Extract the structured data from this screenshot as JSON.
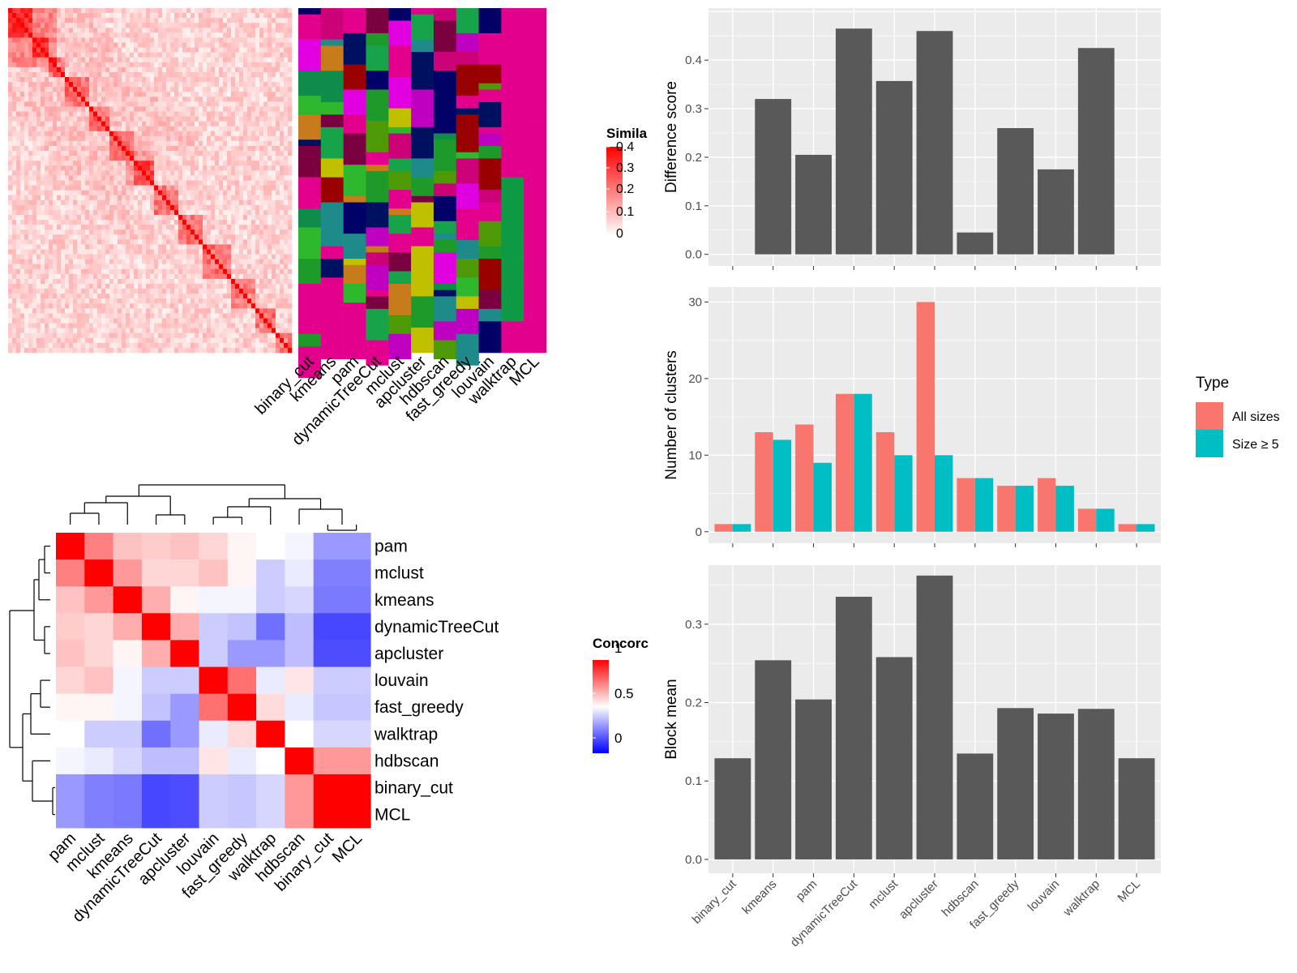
{
  "heatmap_top": {
    "legend_title": "Simila",
    "legend_ticks": [
      "0.4",
      "0.3",
      "0.2",
      "0.1",
      "0"
    ],
    "method_labels": [
      "binary_cut",
      "kmeans",
      "pam",
      "dynamicTreeCut",
      "mclust",
      "apcluster",
      "hdbscan",
      "fast_greedy",
      "louvain",
      "walktrap",
      "MCL"
    ]
  },
  "heatmap_bottom": {
    "legend_title": "Concorc",
    "legend_ticks": [
      "1",
      "0.5",
      "0"
    ],
    "row_labels": [
      "pam",
      "mclust",
      "kmeans",
      "dynamicTreeCut",
      "apcluster",
      "louvain",
      "fast_greedy",
      "walktrap",
      "hdbscan",
      "binary_cut",
      "MCL"
    ],
    "col_labels": [
      "pam",
      "mclust",
      "kmeans",
      "dynamicTreeCut",
      "apcluster",
      "louvain",
      "fast_greedy",
      "walktrap",
      "hdbscan",
      "binary_cut",
      "MCL"
    ],
    "matrix": [
      [
        1.0,
        0.75,
        0.62,
        0.6,
        0.62,
        0.58,
        0.52,
        0.5,
        0.48,
        0.3,
        0.3
      ],
      [
        0.75,
        1.0,
        0.7,
        0.58,
        0.58,
        0.62,
        0.52,
        0.4,
        0.46,
        0.25,
        0.25
      ],
      [
        0.62,
        0.7,
        1.0,
        0.66,
        0.52,
        0.48,
        0.48,
        0.4,
        0.42,
        0.24,
        0.24
      ],
      [
        0.6,
        0.58,
        0.66,
        1.0,
        0.66,
        0.4,
        0.38,
        0.22,
        0.37,
        0.14,
        0.14
      ],
      [
        0.62,
        0.58,
        0.52,
        0.66,
        1.0,
        0.4,
        0.3,
        0.3,
        0.37,
        0.15,
        0.15
      ],
      [
        0.58,
        0.62,
        0.48,
        0.4,
        0.4,
        1.0,
        0.78,
        0.46,
        0.55,
        0.4,
        0.4
      ],
      [
        0.52,
        0.52,
        0.48,
        0.38,
        0.3,
        0.78,
        1.0,
        0.57,
        0.46,
        0.39,
        0.39
      ],
      [
        0.5,
        0.4,
        0.4,
        0.22,
        0.3,
        0.46,
        0.57,
        1.0,
        0.5,
        0.42,
        0.42
      ],
      [
        0.48,
        0.46,
        0.42,
        0.37,
        0.37,
        0.55,
        0.46,
        0.5,
        1.0,
        0.7,
        0.7
      ],
      [
        0.3,
        0.25,
        0.24,
        0.14,
        0.15,
        0.4,
        0.39,
        0.42,
        0.7,
        1.0,
        1.0
      ],
      [
        0.3,
        0.25,
        0.24,
        0.14,
        0.15,
        0.4,
        0.39,
        0.42,
        0.7,
        1.0,
        1.0
      ]
    ]
  },
  "chart_data": [
    {
      "type": "bar",
      "categories": [
        "binary_cut",
        "kmeans",
        "pam",
        "dynamicTreeCut",
        "mclust",
        "apcluster",
        "hdbscan",
        "fast_greedy",
        "louvain",
        "walktrap",
        "MCL"
      ],
      "values": [
        0,
        0.32,
        0.205,
        0.465,
        0.357,
        0.46,
        0.045,
        0.26,
        0.175,
        0.425,
        0
      ],
      "ylabel": "Difference score",
      "ylim": [
        0,
        0.5
      ],
      "yticks": [
        "0.0",
        "0.1",
        "0.2",
        "0.3",
        "0.4"
      ]
    },
    {
      "type": "bar",
      "categories": [
        "binary_cut",
        "kmeans",
        "pam",
        "dynamicTreeCut",
        "mclust",
        "apcluster",
        "hdbscan",
        "fast_greedy",
        "louvain",
        "walktrap",
        "MCL"
      ],
      "series": [
        {
          "name": "All sizes",
          "values": [
            1,
            13,
            14,
            18,
            13,
            30,
            7,
            6,
            7,
            3,
            1
          ]
        },
        {
          "name": "Size ≥ 5",
          "values": [
            1,
            12,
            9,
            18,
            10,
            10,
            7,
            6,
            6,
            3,
            1
          ]
        }
      ],
      "ylabel": "Number of clusters",
      "ylim": [
        0,
        31.5
      ],
      "yticks": [
        "0",
        "10",
        "20",
        "30"
      ],
      "legend_title": "Type",
      "legend_position": "right"
    },
    {
      "type": "bar",
      "categories": [
        "binary_cut",
        "kmeans",
        "pam",
        "dynamicTreeCut",
        "mclust",
        "apcluster",
        "hdbscan",
        "fast_greedy",
        "louvain",
        "walktrap",
        "MCL"
      ],
      "values": [
        0.129,
        0.254,
        0.204,
        0.335,
        0.258,
        0.362,
        0.135,
        0.193,
        0.186,
        0.192,
        0.129
      ],
      "ylabel": "Block mean",
      "ylim": [
        0,
        0.37
      ],
      "yticks": [
        "0.0",
        "0.1",
        "0.2",
        "0.3"
      ]
    }
  ],
  "colors": {
    "bar": "#595959",
    "panel_bg": "#EBEBEB",
    "all_sizes": "#F8766D",
    "size_ge_5": "#00BFC4"
  }
}
